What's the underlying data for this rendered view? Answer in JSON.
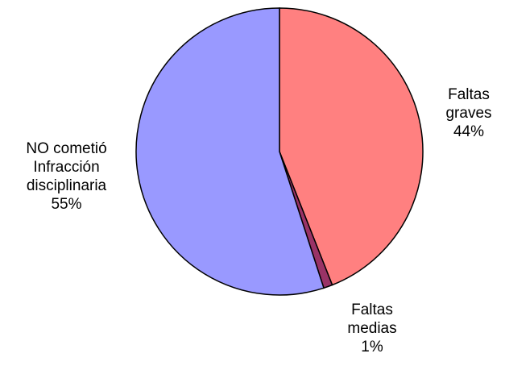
{
  "chart_data": {
    "type": "pie",
    "categories": [
      "Faltas graves",
      "Faltas medias",
      "NO cometió Infracción disciplinaria"
    ],
    "values": [
      44,
      1,
      55
    ],
    "value_labels": [
      "44%",
      "1%",
      "55%"
    ],
    "colors": [
      "#ff8080",
      "#993366",
      "#9999ff"
    ]
  }
}
